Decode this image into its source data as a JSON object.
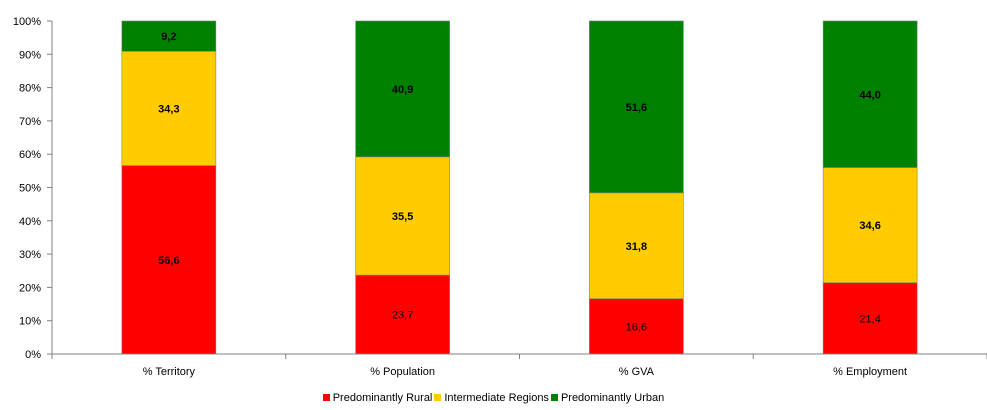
{
  "chart_data": {
    "type": "bar",
    "stacked": true,
    "percent": true,
    "categories": [
      "% Territory",
      "% Population",
      "% GVA",
      "% Employment"
    ],
    "series": [
      {
        "name": "Predominantly Rural",
        "color": "#ff0000",
        "values": [
          56.6,
          23.7,
          16.6,
          21.4
        ],
        "labels": [
          "56,6",
          "23,7",
          "16,6",
          "21,4"
        ],
        "bold": [
          true,
          false,
          false,
          false
        ]
      },
      {
        "name": "Intermediate Regions",
        "color": "#ffcc00",
        "values": [
          34.3,
          35.5,
          31.8,
          34.6
        ],
        "labels": [
          "34,3",
          "35,5",
          "31,8",
          "34,6"
        ],
        "bold": [
          true,
          true,
          true,
          true
        ]
      },
      {
        "name": "Predominantly Urban",
        "color": "#008000",
        "values": [
          9.2,
          40.9,
          51.6,
          44.0
        ],
        "labels": [
          "9,2",
          "40,9",
          "51,6",
          "44,0"
        ],
        "bold": [
          true,
          true,
          true,
          true
        ]
      }
    ],
    "ylim": [
      0,
      100
    ],
    "yticks": [
      "0%",
      "10%",
      "20%",
      "30%",
      "40%",
      "50%",
      "60%",
      "70%",
      "80%",
      "90%",
      "100%"
    ],
    "grid": false,
    "legend_position": "bottom"
  }
}
